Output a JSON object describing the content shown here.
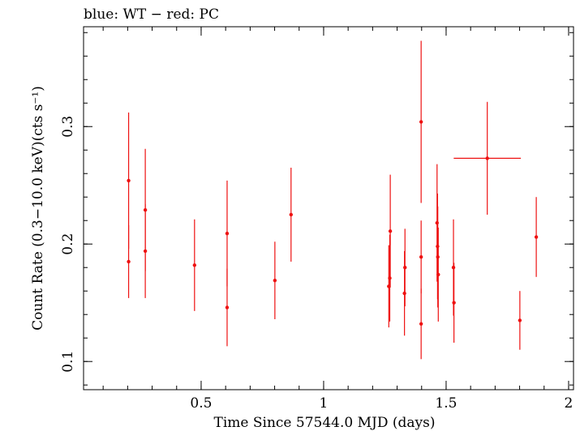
{
  "chart_data": {
    "type": "scatter",
    "title": "blue: WT − red: PC",
    "xlabel": "Time Since 57544.0 MJD (days)",
    "ylabel": "Count Rate (0.3−10.0 keV)(cts s⁻¹)",
    "xlim": [
      0.02,
      2.02
    ],
    "ylim": [
      0.076,
      0.385
    ],
    "x_ticks": [
      {
        "value": 0.5,
        "label": "0.5"
      },
      {
        "value": 1,
        "label": "1"
      },
      {
        "value": 1.5,
        "label": "1.5"
      },
      {
        "value": 2,
        "label": "2"
      }
    ],
    "y_ticks": [
      {
        "value": 0.1,
        "label": "0.1"
      },
      {
        "value": 0.2,
        "label": "0.2"
      },
      {
        "value": 0.3,
        "label": "0.3"
      }
    ],
    "grid": false,
    "series": [
      {
        "color": "#ee1111",
        "points": [
          {
            "x": 0.204,
            "y": 0.254,
            "yerr": 0.058,
            "xerr": 0.002
          },
          {
            "x": 0.204,
            "y": 0.185,
            "yerr": 0.031,
            "xerr": 0.002
          },
          {
            "x": 0.272,
            "y": 0.229,
            "yerr": 0.052,
            "xerr": 0.002
          },
          {
            "x": 0.272,
            "y": 0.194,
            "yerr": 0.04,
            "xerr": 0.002
          },
          {
            "x": 0.473,
            "y": 0.182,
            "yerr": 0.039,
            "xerr": 0.002
          },
          {
            "x": 0.606,
            "y": 0.209,
            "yerr": 0.045,
            "xerr": 0.002
          },
          {
            "x": 0.606,
            "y": 0.146,
            "yerr": 0.033,
            "xerr": 0.002
          },
          {
            "x": 0.801,
            "y": 0.169,
            "yerr": 0.033,
            "xerr": 0.002
          },
          {
            "x": 0.867,
            "y": 0.225,
            "yerr": 0.04,
            "xerr": 0.002
          },
          {
            "x": 1.266,
            "y": 0.164,
            "yerr": 0.035,
            "xerr": 0.002
          },
          {
            "x": 1.27,
            "y": 0.171,
            "yerr": 0.037,
            "xerr": 0.002
          },
          {
            "x": 1.272,
            "y": 0.211,
            "yerr": 0.048,
            "xerr": 0.002
          },
          {
            "x": 1.33,
            "y": 0.158,
            "yerr": 0.036,
            "xerr": 0.002
          },
          {
            "x": 1.332,
            "y": 0.18,
            "yerr": 0.033,
            "xerr": 0.002
          },
          {
            "x": 1.398,
            "y": 0.304,
            "yerr": 0.069,
            "xerr": 0.002
          },
          {
            "x": 1.398,
            "y": 0.189,
            "yerr": 0.031,
            "xerr": 0.002
          },
          {
            "x": 1.398,
            "y": 0.132,
            "yerr": 0.03,
            "xerr": 0.002
          },
          {
            "x": 1.463,
            "y": 0.218,
            "yerr": 0.05,
            "xerr": 0.002
          },
          {
            "x": 1.465,
            "y": 0.198,
            "yerr": 0.045,
            "xerr": 0.002
          },
          {
            "x": 1.466,
            "y": 0.189,
            "yerr": 0.043,
            "xerr": 0.002
          },
          {
            "x": 1.468,
            "y": 0.174,
            "yerr": 0.04,
            "xerr": 0.002
          },
          {
            "x": 1.53,
            "y": 0.18,
            "yerr": 0.041,
            "xerr": 0.002
          },
          {
            "x": 1.532,
            "y": 0.15,
            "yerr": 0.034,
            "xerr": 0.002
          },
          {
            "x": 1.668,
            "y": 0.273,
            "yerr": 0.048,
            "xerr": 0.137
          },
          {
            "x": 1.801,
            "y": 0.135,
            "yerr": 0.025,
            "xerr": 0.002
          },
          {
            "x": 1.868,
            "y": 0.206,
            "yerr": 0.034,
            "xerr": 0.002
          }
        ]
      }
    ]
  }
}
